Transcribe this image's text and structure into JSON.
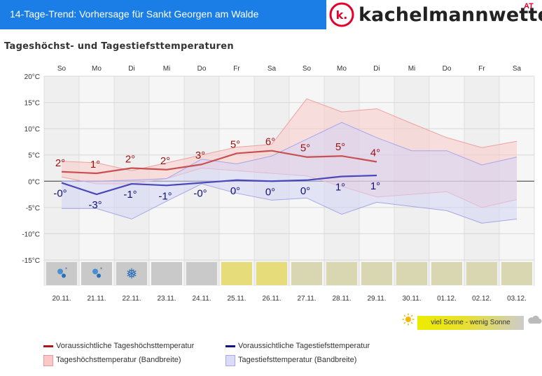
{
  "header": {
    "title": "14-Tage-Trend: Vorhersage für Sankt Georgen am Walde",
    "brand_name": "kachelmannwetter",
    "brand_country": "AT",
    "logo_letter": "k."
  },
  "chart_title": "Tageshöchst- und Tagestiefsttemperaturen",
  "chart_data": {
    "type": "line",
    "days": [
      "So",
      "Mo",
      "Di",
      "Mi",
      "Do",
      "Fr",
      "Sa",
      "So",
      "Mo",
      "Di",
      "Mi",
      "Do",
      "Fr",
      "Sa"
    ],
    "dates": [
      "20.11.",
      "21.11.",
      "22.11.",
      "23.11.",
      "24.11.",
      "25.11.",
      "26.11.",
      "27.11.",
      "28.11.",
      "29.11.",
      "30.11.",
      "01.12.",
      "02.12.",
      "03.12."
    ],
    "y_ticks": [
      "20°C",
      "15°C",
      "10°C",
      "5°C",
      "0°C",
      "-5°C",
      "-10°C",
      "-15°C"
    ],
    "ylim": [
      -15,
      20
    ],
    "max_temp": [
      1.8,
      1.5,
      2.5,
      2.2,
      3.2,
      5.3,
      5.8,
      4.6,
      4.8,
      3.7,
      null,
      null,
      null,
      null
    ],
    "max_labels": [
      "2°",
      "1°",
      "2°",
      "2°",
      "3°",
      "5°",
      "6°",
      "5°",
      "5°",
      "4°",
      "",
      "",
      "",
      ""
    ],
    "min_temp": [
      -0.3,
      -2.5,
      -0.5,
      -0.8,
      -0.3,
      0.2,
      0.0,
      0.2,
      0.9,
      1.1,
      null,
      null,
      null,
      null
    ],
    "min_labels": [
      "-0°",
      "-3°",
      "-1°",
      "-1°",
      "-0°",
      "0°",
      "0°",
      "0°",
      "1°",
      "1°",
      "",
      "",
      "",
      ""
    ],
    "max_band_low": [
      0.8,
      -0.5,
      -0.5,
      0.5,
      2.5,
      2.0,
      1.5,
      1.0,
      -1.0,
      -3.0,
      -2.5,
      -2.0,
      -5.0,
      -3.5
    ],
    "max_band_high": [
      3.8,
      3.5,
      2.0,
      3.5,
      5.0,
      6.5,
      7.0,
      15.7,
      13.2,
      13.8,
      11.0,
      8.3,
      6.4,
      7.6
    ],
    "min_band_low": [
      -5.2,
      -5.2,
      -7.2,
      -3.8,
      -0.5,
      -2.3,
      -3.6,
      -3.2,
      -6.3,
      -4.0,
      -4.8,
      -5.6,
      -8.0,
      -7.2
    ],
    "min_band_high": [
      0.0,
      0.0,
      0.2,
      0.5,
      4.2,
      3.3,
      4.8,
      8.0,
      11.2,
      8.3,
      5.8,
      5.8,
      3.1,
      4.6
    ],
    "weather_icons": [
      "rain-snow",
      "rain-snow",
      "snow",
      "none",
      "none",
      "sun",
      "sun",
      "sun-cloud",
      "sun-cloud",
      "sun-cloud",
      "sun-cloud",
      "sun-cloud",
      "sun-cloud",
      "sun-cloud"
    ],
    "sunshine_colors": [
      "#c9c9c9",
      "#c9c9c9",
      "#c9c9c9",
      "#c9c9c9",
      "#c9c9c9",
      "#e6dd7a",
      "#e6dd7a",
      "#d8d7b2",
      "#d8d7b2",
      "#d8d7b2",
      "#d8d7b2",
      "#d8d7b2",
      "#d8d7b2",
      "#d8d7b2"
    ],
    "colors": {
      "max_line": "#c43c3c",
      "min_line": "#2a2a9a",
      "max_band": "#f9c8c8",
      "min_band": "#d4d4f6",
      "max_label": "#9b1010",
      "min_label": "#101078"
    }
  },
  "sunshine_legend": {
    "label": "viel Sonne - wenig Sonne",
    "sun_icon": "sun-icon",
    "cloud_icon": "cloud-icon"
  },
  "legend": {
    "max_line": "Voraussichtliche Tageshöchsttemperatur",
    "min_line": "Voraussichtliche Tagestiefsttemperatur",
    "max_band": "Tageshöchsttemperatur (Bandbreite)",
    "min_band": "Tagestiefsttemperatur (Bandbreite)"
  }
}
